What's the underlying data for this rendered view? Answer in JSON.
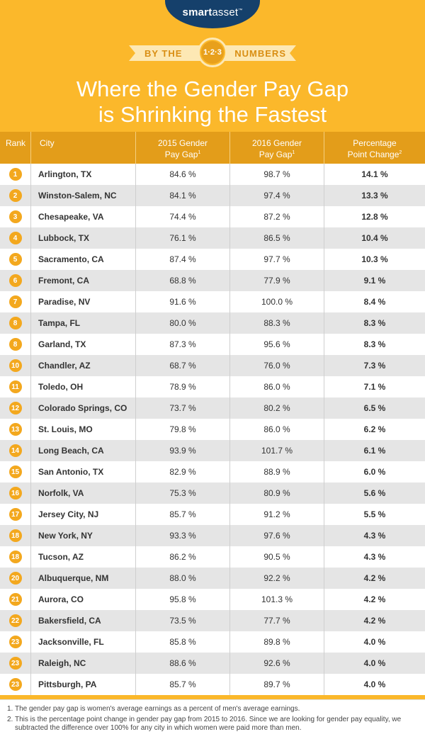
{
  "header": {
    "logo_bold": "smart",
    "logo_light": "asset",
    "logo_tm": "™",
    "ribbon_left": "BY THE",
    "ribbon_badge": "1·2·3",
    "ribbon_right": "NUMBERS",
    "title_line1": "Where the Gender Pay Gap",
    "title_line2": "is Shrinking the Fastest"
  },
  "table": {
    "columns": {
      "rank": "Rank",
      "city": "City",
      "gap2015_line1": "2015 Gender",
      "gap2015_line2": "Pay Gap",
      "gap2015_sup": "1",
      "gap2016_line1": "2016 Gender",
      "gap2016_line2": "Pay Gap",
      "gap2016_sup": "1",
      "change_line1": "Percentage",
      "change_line2": "Point Change",
      "change_sup": "2"
    },
    "rows": [
      {
        "rank": "1",
        "city": "Arlington, TX",
        "gap2015": "84.6 %",
        "gap2016": "98.7 %",
        "change": "14.1 %"
      },
      {
        "rank": "2",
        "city": "Winston-Salem, NC",
        "gap2015": "84.1 %",
        "gap2016": "97.4 %",
        "change": "13.3 %"
      },
      {
        "rank": "3",
        "city": "Chesapeake, VA",
        "gap2015": "74.4 %",
        "gap2016": "87.2 %",
        "change": "12.8 %"
      },
      {
        "rank": "4",
        "city": "Lubbock, TX",
        "gap2015": "76.1 %",
        "gap2016": "86.5 %",
        "change": "10.4 %"
      },
      {
        "rank": "5",
        "city": "Sacramento, CA",
        "gap2015": "87.4 %",
        "gap2016": "97.7 %",
        "change": "10.3 %"
      },
      {
        "rank": "6",
        "city": "Fremont, CA",
        "gap2015": "68.8 %",
        "gap2016": "77.9 %",
        "change": "9.1 %"
      },
      {
        "rank": "7",
        "city": "Paradise, NV",
        "gap2015": "91.6 %",
        "gap2016": "100.0 %",
        "change": "8.4 %"
      },
      {
        "rank": "8",
        "city": "Tampa, FL",
        "gap2015": "80.0 %",
        "gap2016": "88.3 %",
        "change": "8.3 %"
      },
      {
        "rank": "8",
        "city": "Garland, TX",
        "gap2015": "87.3 %",
        "gap2016": "95.6 %",
        "change": "8.3 %"
      },
      {
        "rank": "10",
        "city": "Chandler, AZ",
        "gap2015": "68.7 %",
        "gap2016": "76.0 %",
        "change": "7.3 %"
      },
      {
        "rank": "11",
        "city": "Toledo, OH",
        "gap2015": "78.9 %",
        "gap2016": "86.0 %",
        "change": "7.1 %"
      },
      {
        "rank": "12",
        "city": "Colorado Springs, CO",
        "gap2015": "73.7 %",
        "gap2016": "80.2 %",
        "change": "6.5 %"
      },
      {
        "rank": "13",
        "city": "St. Louis, MO",
        "gap2015": "79.8 %",
        "gap2016": "86.0 %",
        "change": "6.2 %"
      },
      {
        "rank": "14",
        "city": "Long Beach, CA",
        "gap2015": "93.9 %",
        "gap2016": "101.7 %",
        "change": "6.1 %"
      },
      {
        "rank": "15",
        "city": "San Antonio, TX",
        "gap2015": "82.9 %",
        "gap2016": "88.9 %",
        "change": "6.0 %"
      },
      {
        "rank": "16",
        "city": "Norfolk, VA",
        "gap2015": "75.3 %",
        "gap2016": "80.9 %",
        "change": "5.6 %"
      },
      {
        "rank": "17",
        "city": "Jersey City, NJ",
        "gap2015": "85.7 %",
        "gap2016": "91.2 %",
        "change": "5.5 %"
      },
      {
        "rank": "18",
        "city": "New York, NY",
        "gap2015": "93.3 %",
        "gap2016": "97.6 %",
        "change": "4.3 %"
      },
      {
        "rank": "18",
        "city": "Tucson, AZ",
        "gap2015": "86.2 %",
        "gap2016": "90.5 %",
        "change": "4.3 %"
      },
      {
        "rank": "20",
        "city": "Albuquerque, NM",
        "gap2015": "88.0 %",
        "gap2016": "92.2 %",
        "change": "4.2 %"
      },
      {
        "rank": "21",
        "city": "Aurora, CO",
        "gap2015": "95.8 %",
        "gap2016": "101.3 %",
        "change": "4.2 %"
      },
      {
        "rank": "22",
        "city": "Bakersfield, CA",
        "gap2015": "73.5 %",
        "gap2016": "77.7 %",
        "change": "4.2 %"
      },
      {
        "rank": "23",
        "city": "Jacksonville, FL",
        "gap2015": "85.8 %",
        "gap2016": "89.8 %",
        "change": "4.0 %"
      },
      {
        "rank": "23",
        "city": "Raleigh, NC",
        "gap2015": "88.6 %",
        "gap2016": "92.6 %",
        "change": "4.0 %"
      },
      {
        "rank": "23",
        "city": "Pittsburgh, PA",
        "gap2015": "85.7 %",
        "gap2016": "89.7 %",
        "change": "4.0 %"
      }
    ]
  },
  "notes": [
    {
      "num": "1.",
      "text": "The gender pay gap is women's average earnings as a percent of men's average earnings."
    },
    {
      "num": "2.",
      "text": "This is the percentage point change in gender pay gap from 2015 to 2016. Since we are looking for gender pay equality, we subtracted the difference over 100% for any city in which women were paid more than men."
    }
  ],
  "colors": {
    "background": "#fbb82b",
    "logo_tab": "#15406b",
    "table_header": "#e39d1a",
    "rank_circle": "#f3a81e",
    "row_alt": "#e5e5e5"
  }
}
